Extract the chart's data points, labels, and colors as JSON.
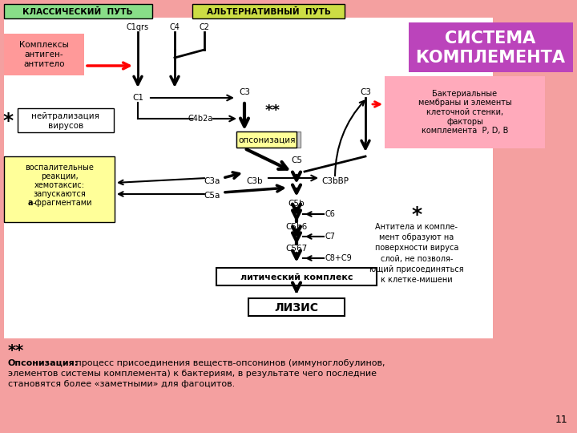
{
  "bg_color": "#F4A0A0",
  "title_classical": "КЛАССИЧЕСКИЙ  ПУТЬ",
  "title_alt": "АЛЬТЕРНАТИВНЫЙ  ПУТЬ",
  "title_system": "СИСТЕМА\nКОМПЛЕМЕНТА",
  "box_antigen_text": "Комплексы\nантиген-\nантитело",
  "box_neut_text": "нейтрализация\nвирусов",
  "box_vospal_line1": "воспалительные",
  "box_vospal_line2": "реакции,",
  "box_vospal_line3": "хемотаксис:",
  "box_vospal_line4": "запускаются",
  "box_vospal_line5a": "а",
  "box_vospal_line5b": "-фрагментами",
  "box_opson_text": "опсонизация",
  "box_bakt_text": "Бактериальные\nмембраны и элементы\nклеточной стенки,\nфакторы\nкомплемента  P, D, B",
  "box_litic_text": "литический комплекс",
  "box_lysis_text": "ЛИЗИС",
  "antibody_star": "*",
  "antibody_note": "Антитела и компле-\nмент образуют на\nповерхности вируса\nслой, не позволя-\nющий присоединяться\nк клетке-мишени",
  "opson_star": "**",
  "opson_bold": "Опсонизация:",
  "opson_rest1": " процесс присоединения веществ-опсонинов (иммуноглобулинов,",
  "opson_rest2": "элементов системы комплемента) к бактериям, в результате чего последние",
  "opson_rest3": "становятся более «заметными» для фагоцитов.",
  "slide_num": "11",
  "classical_header_color": "#88DD88",
  "alt_header_color": "#CCDD44",
  "system_box_color": "#BB44BB",
  "antigen_box_color": "#FF9999",
  "neut_box_color": "#FFFFFF",
  "vospal_box_color": "#FFFF99",
  "opson_box_color": "#FFFF99",
  "bakt_box_color": "#FFAABB",
  "litic_box_color": "#FFFFFF",
  "lysis_box_color": "#FFFFFF",
  "white_area_color": "#FFFFFF"
}
